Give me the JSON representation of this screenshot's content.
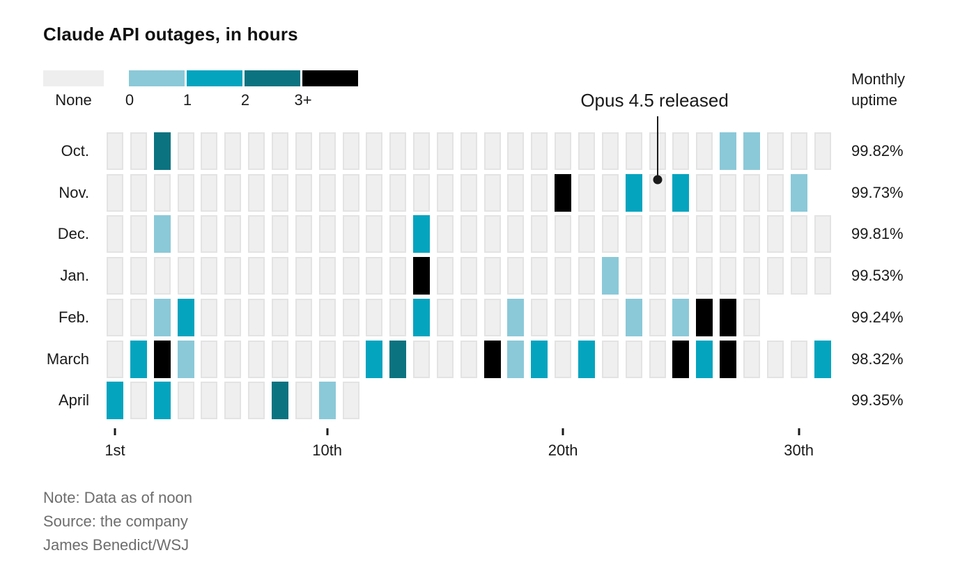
{
  "title": "Claude API outages, in hours",
  "legend": {
    "none_label": "None",
    "none_color": "#eeeeee",
    "bins": [
      {
        "label": "0",
        "color": "#8bc9d8"
      },
      {
        "label": "1",
        "color": "#04a4bf"
      },
      {
        "label": "2",
        "color": "#0b7380"
      },
      {
        "label": "3+",
        "color": "#000000"
      }
    ]
  },
  "annotation": {
    "text": "Opus 4.5 released",
    "month": "Nov.",
    "day": 24
  },
  "uptime_header": "Monthly uptime",
  "axis_ticks": [
    {
      "day": 1,
      "label": "1st"
    },
    {
      "day": 10,
      "label": "10th"
    },
    {
      "day": 20,
      "label": "20th"
    },
    {
      "day": 30,
      "label": "30th"
    }
  ],
  "notes": [
    "Note: Data as of noon",
    "Source: the company",
    "James Benedict/WSJ"
  ],
  "chart_data": {
    "type": "heatmap",
    "unit": "outage hours per day",
    "value_levels": [
      "none",
      "0",
      "1",
      "2",
      "3+"
    ],
    "rows": [
      {
        "month": "Oct.",
        "days": 31,
        "uptime": "99.82%",
        "outages": {
          "3": "2",
          "27": "0",
          "28": "0"
        }
      },
      {
        "month": "Nov.",
        "days": 30,
        "uptime": "99.73%",
        "outages": {
          "20": "3+",
          "23": "1",
          "25": "1",
          "30": "0"
        }
      },
      {
        "month": "Dec.",
        "days": 31,
        "uptime": "99.81%",
        "outages": {
          "3": "0",
          "14": "1"
        }
      },
      {
        "month": "Jan.",
        "days": 31,
        "uptime": "99.53%",
        "outages": {
          "14": "3+",
          "22": "0"
        }
      },
      {
        "month": "Feb.",
        "days": 28,
        "uptime": "99.24%",
        "outages": {
          "3": "0",
          "4": "1",
          "14": "1",
          "18": "0",
          "23": "0",
          "25": "0",
          "26": "3+",
          "27": "3+"
        }
      },
      {
        "month": "March",
        "days": 31,
        "uptime": "98.32%",
        "outages": {
          "2": "1",
          "3": "3+",
          "4": "0",
          "12": "1",
          "13": "2",
          "17": "3+",
          "18": "0",
          "19": "1",
          "21": "1",
          "25": "3+",
          "26": "1",
          "27": "3+",
          "31": "1"
        }
      },
      {
        "month": "April",
        "days": 11,
        "uptime": "99.35%",
        "outages": {
          "1": "1",
          "3": "1",
          "8": "2",
          "10": "0"
        }
      }
    ]
  }
}
